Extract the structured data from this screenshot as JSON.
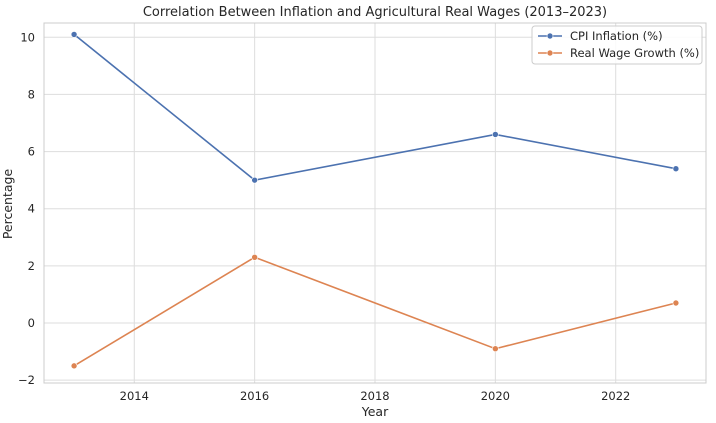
{
  "chart_data": {
    "type": "line",
    "title": "Correlation Between Inflation and Agricultural Real Wages (2013–2023)",
    "xlabel": "Year",
    "ylabel": "Percentage",
    "x": [
      2013,
      2016,
      2020,
      2023
    ],
    "xlim": [
      2012.5,
      2023.5
    ],
    "ylim": [
      -2.1,
      10.5
    ],
    "xticks": [
      2014,
      2016,
      2018,
      2020,
      2022
    ],
    "yticks": [
      -2,
      0,
      2,
      4,
      6,
      8,
      10
    ],
    "xtick_labels": [
      "2014",
      "2016",
      "2018",
      "2020",
      "2022"
    ],
    "ytick_labels": [
      "−2",
      "0",
      "2",
      "4",
      "6",
      "8",
      "10"
    ],
    "grid": true,
    "legend_position": "top-right",
    "series": [
      {
        "name": "CPI Inflation (%)",
        "color": "#4c72b0",
        "marker": "circle",
        "values": [
          10.1,
          5.0,
          6.6,
          5.4
        ]
      },
      {
        "name": "Real Wage Growth (%)",
        "color": "#dd8452",
        "marker": "circle",
        "values": [
          -1.5,
          2.3,
          -0.9,
          0.7
        ]
      }
    ]
  }
}
